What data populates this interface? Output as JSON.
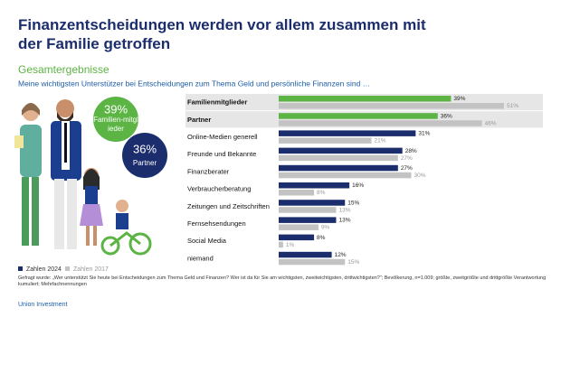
{
  "chart_data": {
    "type": "hbar",
    "title": "Finanzentscheidungen werden vor allem zusammen mit der Familie getroffen",
    "subtitle": "Gesamtergebnisse",
    "question": "Meine wichtigsten Unterstützer bei Entscheidungen zum Thema Geld und persönliche Finanzen sind …",
    "annotations": [
      {
        "value": "39%",
        "label": "Familien-mitglieder"
      },
      {
        "value": "36%",
        "label": "Partner"
      }
    ],
    "categories": [
      "Familienmitglieder",
      "Partner",
      "Online-Medien generell",
      "Freunde und Bekannte",
      "Finanzberater",
      "Verbraucherberatung",
      "Zeitungen und Zeitschriften",
      "Fernsehsendungen",
      "Social Media",
      "niemand"
    ],
    "highlight": [
      true,
      true,
      false,
      false,
      false,
      false,
      false,
      false,
      false,
      false
    ],
    "series": [
      {
        "name": "Zahlen 2024",
        "color": "#1c2d6e",
        "colors": [
          "#5bb443",
          "#5bb443",
          "#1c2d6e",
          "#1c2d6e",
          "#1c2d6e",
          "#1c2d6e",
          "#1c2d6e",
          "#1c2d6e",
          "#1c2d6e",
          "#1c2d6e"
        ],
        "values": [
          39,
          36,
          31,
          28,
          27,
          16,
          15,
          13,
          8,
          12
        ],
        "value_labels": [
          "39%",
          "36%",
          "31%",
          "28%",
          "27%",
          "16%",
          "15%",
          "13%",
          "8%",
          "12%"
        ]
      },
      {
        "name": "Zahlen 2017",
        "color": "#c3c3c3",
        "values": [
          51,
          46,
          21,
          27,
          30,
          8,
          13,
          9,
          1,
          15
        ],
        "value_labels": [
          "51%",
          "46%",
          "21%",
          "27%",
          "30%",
          "8%",
          "13%",
          "9%",
          "1%",
          "15%"
        ]
      }
    ],
    "footnote": "Gefragt wurde: „Wer unterstützt Sie heute bei Entscheidungen zum Thema Geld und Finanzen? Wer ist da für Sie am wichtigsten, zweitwichtigsten, drittwichtigsten?“; Bevölkerung, n=1.009; größte, zweitgrößte und drittgrößte Verantwortung kumuliert; Mehrfachnennungen",
    "source": "Union Investment"
  }
}
